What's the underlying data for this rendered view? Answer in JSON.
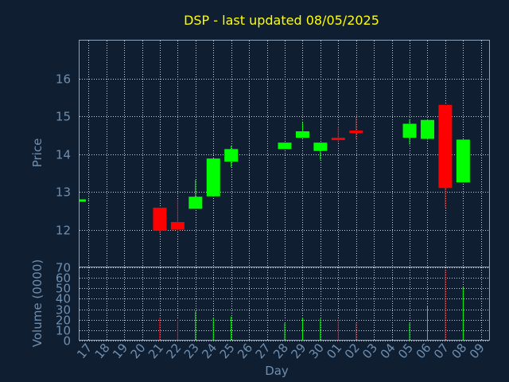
{
  "chart_data": {
    "type": "candlestick",
    "title": "DSP - last updated 08/05/2025",
    "xlabel": "Day",
    "price_panel": {
      "ylabel": "Price",
      "ylim": [
        11,
        17
      ],
      "yticks": [
        "12",
        "13",
        "14",
        "15",
        "16"
      ],
      "grid": true,
      "up_color": "#00ff00",
      "down_color": "#ff0000"
    },
    "volume_panel": {
      "ylabel": "Volume (0000)",
      "ylim": [
        0,
        70
      ],
      "yticks": [
        "0",
        "10",
        "20",
        "30",
        "40",
        "50",
        "60",
        "70"
      ],
      "grid": true
    },
    "x_ticks": [
      "17",
      "18",
      "19",
      "20",
      "21",
      "22",
      "23",
      "24",
      "25",
      "26",
      "27",
      "28",
      "29",
      "30",
      "01",
      "02",
      "03",
      "04",
      "05",
      "06",
      "07",
      "08",
      "09"
    ],
    "candles": [
      {
        "day": "17",
        "open": 12.76,
        "close": 12.8,
        "high": 12.8,
        "low": 12.76,
        "volume": 0
      },
      {
        "day": "21",
        "open": 12.58,
        "close": 11.97,
        "high": 12.58,
        "low": 11.9,
        "volume": 22
      },
      {
        "day": "22",
        "open": 12.2,
        "close": 12.0,
        "high": 12.8,
        "low": 11.97,
        "volume": 20
      },
      {
        "day": "23",
        "open": 12.55,
        "close": 12.87,
        "high": 13.32,
        "low": 12.55,
        "volume": 28
      },
      {
        "day": "24",
        "open": 12.88,
        "close": 13.88,
        "high": 13.88,
        "low": 12.88,
        "volume": 22
      },
      {
        "day": "25",
        "open": 13.8,
        "close": 14.13,
        "high": 14.22,
        "low": 13.65,
        "volume": 23
      },
      {
        "day": "28",
        "open": 14.13,
        "close": 14.3,
        "high": 14.3,
        "low": 14.13,
        "volume": 17
      },
      {
        "day": "29",
        "open": 14.43,
        "close": 14.6,
        "high": 14.83,
        "low": 14.43,
        "volume": 22
      },
      {
        "day": "30",
        "open": 14.08,
        "close": 14.3,
        "high": 14.3,
        "low": 13.85,
        "volume": 21
      },
      {
        "day": "01",
        "open": 14.43,
        "close": 14.38,
        "high": 14.72,
        "low": 14.3,
        "volume": 20
      },
      {
        "day": "02",
        "open": 14.62,
        "close": 14.55,
        "high": 14.98,
        "low": 14.38,
        "volume": 17
      },
      {
        "day": "05",
        "open": 14.43,
        "close": 14.8,
        "high": 14.92,
        "low": 14.25,
        "volume": 17
      },
      {
        "day": "06",
        "open": 14.4,
        "close": 14.9,
        "high": 14.92,
        "low": 14.38,
        "volume": 33
      },
      {
        "day": "07",
        "open": 15.3,
        "close": 13.1,
        "high": 15.3,
        "low": 12.58,
        "volume": 68
      },
      {
        "day": "08",
        "open": 13.25,
        "close": 14.38,
        "high": 14.38,
        "low": 13.25,
        "volume": 51
      }
    ]
  }
}
